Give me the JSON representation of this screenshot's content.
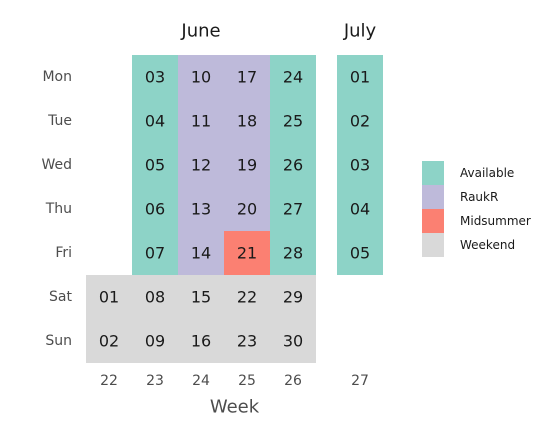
{
  "chart_data": {
    "type": "heatmap",
    "xlabel": "Week",
    "month_labels": [
      {
        "label": "June",
        "weeks": [
          22,
          26
        ]
      },
      {
        "label": "July",
        "weeks": [
          27,
          27
        ]
      }
    ],
    "weeks": [
      "22",
      "23",
      "24",
      "25",
      "26",
      "27"
    ],
    "weekdays": [
      "Mon",
      "Tue",
      "Wed",
      "Thu",
      "Fri",
      "Sat",
      "Sun"
    ],
    "legend": [
      {
        "key": "available",
        "label": "Available",
        "color": "#8dd3c7"
      },
      {
        "key": "raukr",
        "label": "RaukR",
        "color": "#bebada"
      },
      {
        "key": "midsummer",
        "label": "Midsummer",
        "color": "#fb8072"
      },
      {
        "key": "weekend",
        "label": "Weekend",
        "color": "#d9d9d9"
      }
    ],
    "cells": [
      {
        "week": "22",
        "weekday": "Sat",
        "day": "01",
        "category": "weekend"
      },
      {
        "week": "22",
        "weekday": "Sun",
        "day": "02",
        "category": "weekend"
      },
      {
        "week": "23",
        "weekday": "Mon",
        "day": "03",
        "category": "available"
      },
      {
        "week": "23",
        "weekday": "Tue",
        "day": "04",
        "category": "available"
      },
      {
        "week": "23",
        "weekday": "Wed",
        "day": "05",
        "category": "available"
      },
      {
        "week": "23",
        "weekday": "Thu",
        "day": "06",
        "category": "available"
      },
      {
        "week": "23",
        "weekday": "Fri",
        "day": "07",
        "category": "available"
      },
      {
        "week": "23",
        "weekday": "Sat",
        "day": "08",
        "category": "weekend"
      },
      {
        "week": "23",
        "weekday": "Sun",
        "day": "09",
        "category": "weekend"
      },
      {
        "week": "24",
        "weekday": "Mon",
        "day": "10",
        "category": "raukr"
      },
      {
        "week": "24",
        "weekday": "Tue",
        "day": "11",
        "category": "raukr"
      },
      {
        "week": "24",
        "weekday": "Wed",
        "day": "12",
        "category": "raukr"
      },
      {
        "week": "24",
        "weekday": "Thu",
        "day": "13",
        "category": "raukr"
      },
      {
        "week": "24",
        "weekday": "Fri",
        "day": "14",
        "category": "raukr"
      },
      {
        "week": "24",
        "weekday": "Sat",
        "day": "15",
        "category": "weekend"
      },
      {
        "week": "24",
        "weekday": "Sun",
        "day": "16",
        "category": "weekend"
      },
      {
        "week": "25",
        "weekday": "Mon",
        "day": "17",
        "category": "raukr"
      },
      {
        "week": "25",
        "weekday": "Tue",
        "day": "18",
        "category": "raukr"
      },
      {
        "week": "25",
        "weekday": "Wed",
        "day": "19",
        "category": "raukr"
      },
      {
        "week": "25",
        "weekday": "Thu",
        "day": "20",
        "category": "raukr"
      },
      {
        "week": "25",
        "weekday": "Fri",
        "day": "21",
        "category": "midsummer"
      },
      {
        "week": "25",
        "weekday": "Sat",
        "day": "22",
        "category": "weekend"
      },
      {
        "week": "25",
        "weekday": "Sun",
        "day": "23",
        "category": "weekend"
      },
      {
        "week": "26",
        "weekday": "Mon",
        "day": "24",
        "category": "available"
      },
      {
        "week": "26",
        "weekday": "Tue",
        "day": "25",
        "category": "available"
      },
      {
        "week": "26",
        "weekday": "Wed",
        "day": "26",
        "category": "available"
      },
      {
        "week": "26",
        "weekday": "Thu",
        "day": "27",
        "category": "available"
      },
      {
        "week": "26",
        "weekday": "Fri",
        "day": "28",
        "category": "available"
      },
      {
        "week": "26",
        "weekday": "Sat",
        "day": "29",
        "category": "weekend"
      },
      {
        "week": "26",
        "weekday": "Sun",
        "day": "30",
        "category": "weekend"
      },
      {
        "week": "27",
        "weekday": "Mon",
        "day": "01",
        "category": "available"
      },
      {
        "week": "27",
        "weekday": "Tue",
        "day": "02",
        "category": "available"
      },
      {
        "week": "27",
        "weekday": "Wed",
        "day": "03",
        "category": "available"
      },
      {
        "week": "27",
        "weekday": "Thu",
        "day": "04",
        "category": "available"
      },
      {
        "week": "27",
        "weekday": "Fri",
        "day": "05",
        "category": "available"
      }
    ]
  }
}
